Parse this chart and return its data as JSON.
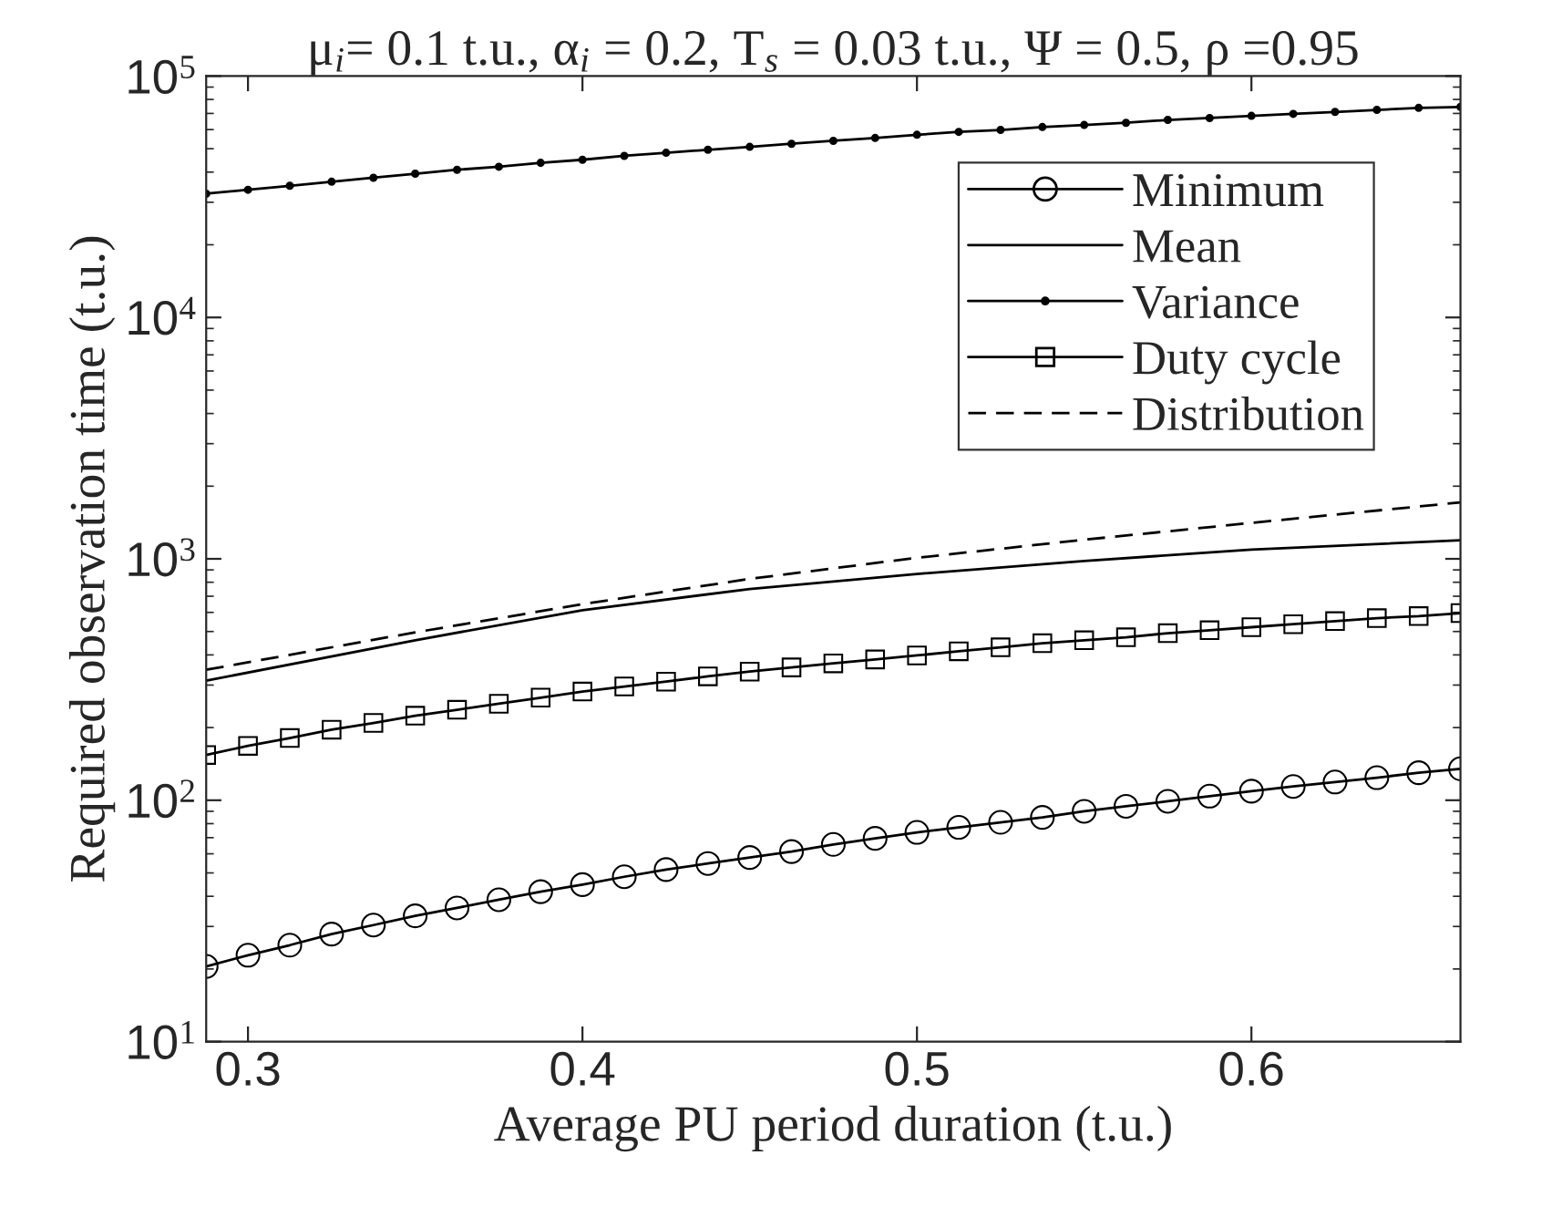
{
  "chart_data": {
    "type": "line",
    "title": "μ$_{i}$= 0.1 t.u., α$_{i}$ = 0.2, T$_{s}$ = 0.03 t.u., Ψ = 0.5, ρ =0.95",
    "xlabel": "Average PU period duration (t.u.)",
    "ylabel": "Required observation time (t.u.)",
    "x": [
      0.2875,
      0.3,
      0.3125,
      0.325,
      0.3375,
      0.35,
      0.3625,
      0.375,
      0.3875,
      0.4,
      0.4125,
      0.425,
      0.4375,
      0.45,
      0.4625,
      0.475,
      0.4875,
      0.5,
      0.5125,
      0.525,
      0.5375,
      0.55,
      0.5625,
      0.575,
      0.5875,
      0.6,
      0.6125,
      0.625,
      0.6375,
      0.65,
      0.6625
    ],
    "series": [
      {
        "name": "Minimum",
        "color": "#000000",
        "marker": "circle",
        "values": [
          20.5,
          22.8,
          25.1,
          27.9,
          30.4,
          33.2,
          35.8,
          38.7,
          41.8,
          44.7,
          48.2,
          51.6,
          54.7,
          57.9,
          61.3,
          65.6,
          69.5,
          73.6,
          77.2,
          81,
          84.9,
          90,
          94.4,
          99,
          104,
          109,
          114,
          119,
          124,
          130,
          135
        ]
      },
      {
        "name": "Mean",
        "color": "#000000",
        "x": [
          0.2875,
          0.35,
          0.4,
          0.45,
          0.5,
          0.55,
          0.6,
          0.6625
        ],
        "values": [
          313,
          460,
          613,
          750,
          866,
          980,
          1092,
          1194
        ]
      },
      {
        "name": "Variance",
        "color": "#000000",
        "marker": "dot",
        "values": [
          32560,
          33800,
          35100,
          36500,
          37900,
          39400,
          40900,
          42100,
          43700,
          45000,
          46700,
          48100,
          49500,
          50900,
          52400,
          53900,
          55400,
          57100,
          58700,
          59800,
          61500,
          62700,
          64000,
          65800,
          67000,
          68400,
          69700,
          71000,
          72400,
          73800,
          74500
        ]
      },
      {
        "name": "Duty cycle",
        "color": "#000000",
        "marker": "square",
        "values": [
          154,
          168,
          181,
          196,
          209,
          224,
          237,
          251,
          266,
          282,
          296,
          310,
          326,
          341,
          355,
          369,
          383,
          398,
          414,
          430,
          447,
          460,
          473,
          492,
          506,
          521,
          536,
          552,
          568,
          579,
          596
        ]
      },
      {
        "name": "Distribution",
        "color": "#000000",
        "line_style": "dashed",
        "x": [
          0.2875,
          0.35,
          0.4,
          0.45,
          0.5,
          0.55,
          0.6,
          0.6625
        ],
        "values": [
          347,
          496,
          649,
          826,
          1010,
          1200,
          1409,
          1714
        ]
      }
    ],
    "log": "y",
    "xlim": [
      0.2875,
      0.6625
    ],
    "xticks": [
      0.3,
      0.4,
      0.5,
      0.6
    ],
    "ylim": [
      10,
      100000
    ],
    "yticks": [
      {
        "value": 10,
        "label": "10$^{1}$"
      },
      {
        "value": 100,
        "label": "10$^{2}$"
      },
      {
        "value": 1000,
        "label": "10$^{3}$"
      },
      {
        "value": 10000,
        "label": "10$^{4}$"
      },
      {
        "value": 100000,
        "label": "10$^{5}$"
      }
    ],
    "grid": false,
    "legend": "top right"
  }
}
